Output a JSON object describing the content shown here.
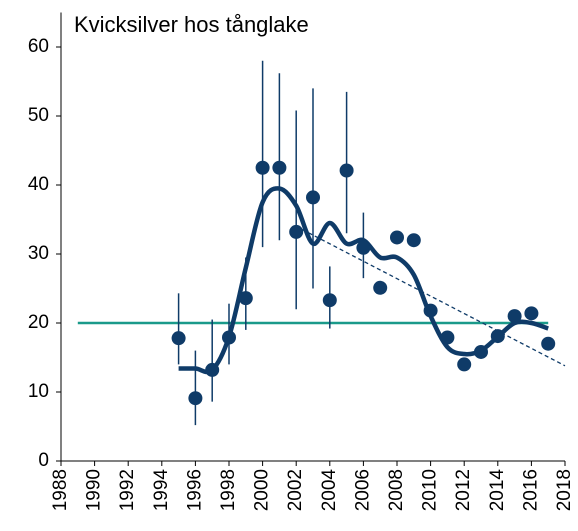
{
  "chart_data": {
    "type": "scatter",
    "title": "Kvicksilver hos tånglake",
    "x": [
      1995,
      1996,
      1997,
      1998,
      1999,
      2000,
      2001,
      2002,
      2003,
      2004,
      2005,
      2006,
      2007,
      2008,
      2009,
      2010,
      2011,
      2012,
      2013,
      2014,
      2015,
      2016,
      2017
    ],
    "points": {
      "color": "#0f3b68",
      "values": [
        17.8,
        9.1,
        13.2,
        17.9,
        23.6,
        42.5,
        42.5,
        33.2,
        38.2,
        23.3,
        42.1,
        30.9,
        25.1,
        32.4,
        32.0,
        21.8,
        17.9,
        14.0,
        15.8,
        18.1,
        21.0,
        21.4,
        17.0
      ],
      "error_low": [
        14.0,
        5.2,
        8.6,
        14.0,
        19.0,
        31.0,
        32.0,
        22.0,
        25.0,
        19.2,
        33.0,
        26.5,
        null,
        null,
        null,
        null,
        null,
        null,
        null,
        null,
        null,
        null,
        null
      ],
      "error_high": [
        24.3,
        16.0,
        20.5,
        22.8,
        29.5,
        58.0,
        56.2,
        50.8,
        54.0,
        28.2,
        53.5,
        36.0,
        null,
        null,
        null,
        null,
        null,
        null,
        null,
        null,
        null,
        null,
        null
      ]
    },
    "smooth": {
      "color": "#0f3b68",
      "values": [
        13.4,
        13.4,
        13.2,
        18.0,
        28.0,
        37.5,
        39.5,
        37.0,
        31.5,
        34.5,
        31.5,
        32.0,
        29.5,
        29.5,
        27.0,
        21.0,
        16.5,
        15.5,
        16.0,
        18.0,
        20.0,
        20.0,
        19.2
      ]
    },
    "trend": {
      "color": "#0f3b68",
      "x": [
        2002,
        2018
      ],
      "values": [
        34.0,
        13.8
      ]
    },
    "reference": {
      "color": "#1a9a8a",
      "x": [
        1989,
        2017
      ],
      "values": [
        20,
        20
      ]
    },
    "xlim": [
      1988,
      2018
    ],
    "xticks": [
      1988,
      1990,
      1992,
      1994,
      1996,
      1998,
      2000,
      2002,
      2004,
      2006,
      2008,
      2010,
      2012,
      2014,
      2016,
      2018
    ],
    "ylim": [
      0,
      65
    ],
    "yticks": [
      0,
      10,
      20,
      30,
      40,
      50,
      60
    ]
  }
}
